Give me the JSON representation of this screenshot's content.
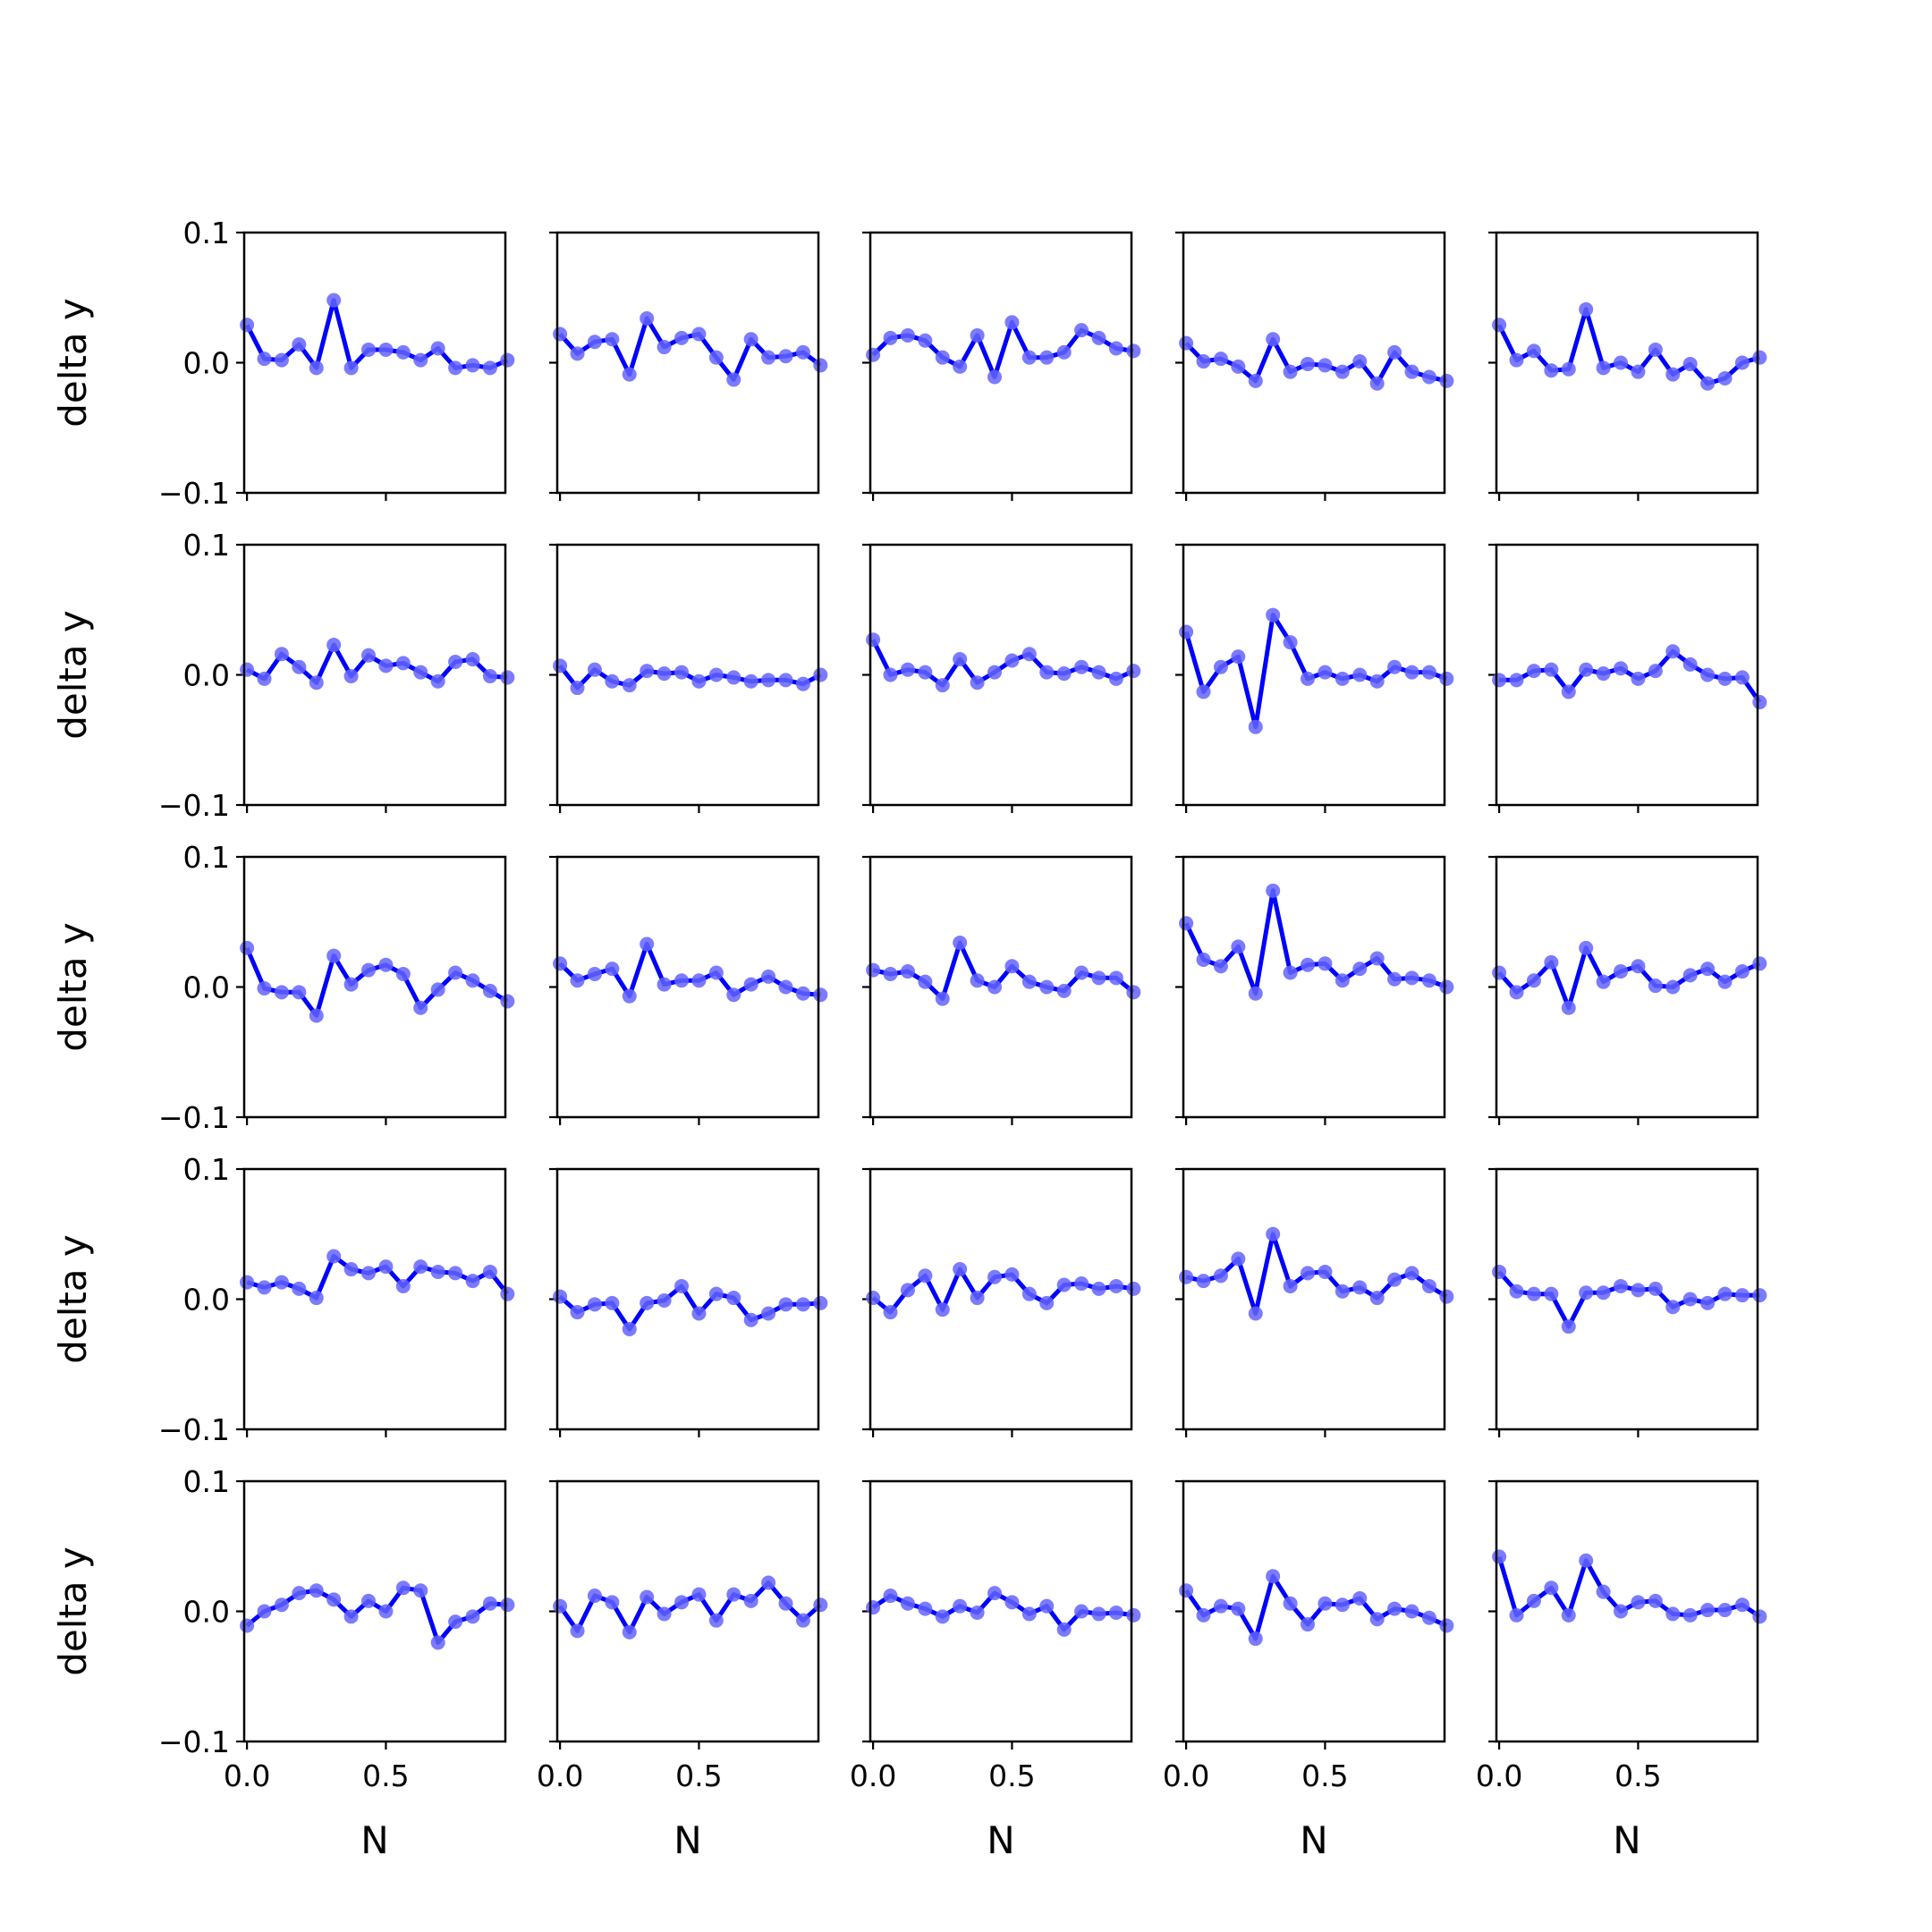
{
  "chart_data": {
    "type": "line",
    "layout": "5x5 grid of small multiples",
    "xlabel": "N",
    "ylabel": "delta y",
    "xlim": [
      -0.01,
      0.93
    ],
    "ylim": [
      -0.1,
      0.1
    ],
    "xticks": [
      0.0,
      0.5
    ],
    "xtick_labels": [
      "0.0",
      "0.5"
    ],
    "yticks": [
      0.1,
      0.0,
      -0.1
    ],
    "ytick_labels": [
      "0.1",
      "0.0",
      "−0.1"
    ],
    "x": [
      0.0,
      0.0625,
      0.125,
      0.1875,
      0.25,
      0.3125,
      0.375,
      0.4375,
      0.5,
      0.5625,
      0.625,
      0.6875,
      0.75,
      0.8125,
      0.875,
      0.9375
    ],
    "line_color": "#0000ff",
    "marker_color": "#6464ff",
    "grid": false,
    "panels": [
      {
        "values": [
          0.029,
          0.003,
          0.002,
          0.014,
          -0.004,
          0.048,
          -0.004,
          0.01,
          0.01,
          0.008,
          0.002,
          0.011,
          -0.004,
          -0.002,
          -0.004,
          0.002
        ]
      },
      {
        "values": [
          0.022,
          0.007,
          0.016,
          0.018,
          -0.009,
          0.034,
          0.012,
          0.019,
          0.022,
          0.004,
          -0.013,
          0.018,
          0.004,
          0.005,
          0.008,
          -0.002
        ]
      },
      {
        "values": [
          0.006,
          0.019,
          0.021,
          0.017,
          0.004,
          -0.003,
          0.021,
          -0.011,
          0.031,
          0.004,
          0.004,
          0.008,
          0.025,
          0.019,
          0.011,
          0.009
        ]
      },
      {
        "values": [
          0.015,
          0.001,
          0.003,
          -0.003,
          -0.014,
          0.018,
          -0.007,
          -0.001,
          -0.002,
          -0.007,
          0.001,
          -0.016,
          0.008,
          -0.007,
          -0.011,
          -0.014
        ]
      },
      {
        "values": [
          0.029,
          0.002,
          0.009,
          -0.006,
          -0.005,
          0.041,
          -0.004,
          0.0,
          -0.007,
          0.01,
          -0.009,
          -0.001,
          -0.016,
          -0.012,
          0.0,
          0.004
        ]
      },
      {
        "values": [
          0.004,
          -0.003,
          0.016,
          0.006,
          -0.006,
          0.023,
          -0.001,
          0.015,
          0.007,
          0.009,
          0.002,
          -0.005,
          0.01,
          0.012,
          -0.001,
          -0.002
        ]
      },
      {
        "values": [
          0.007,
          -0.01,
          0.004,
          -0.005,
          -0.008,
          0.003,
          0.001,
          0.002,
          -0.005,
          0.0,
          -0.002,
          -0.005,
          -0.004,
          -0.004,
          -0.007,
          0.0
        ]
      },
      {
        "values": [
          0.027,
          0.0,
          0.004,
          0.002,
          -0.008,
          0.012,
          -0.006,
          0.002,
          0.011,
          0.016,
          0.002,
          0.001,
          0.006,
          0.002,
          -0.003,
          0.003
        ]
      },
      {
        "values": [
          0.033,
          -0.013,
          0.006,
          0.014,
          -0.04,
          0.046,
          0.025,
          -0.003,
          0.002,
          -0.003,
          0.0,
          -0.005,
          0.006,
          0.002,
          0.002,
          -0.003
        ]
      },
      {
        "values": [
          -0.004,
          -0.004,
          0.003,
          0.004,
          -0.013,
          0.004,
          0.001,
          0.005,
          -0.003,
          0.003,
          0.018,
          0.008,
          0.0,
          -0.003,
          -0.002,
          -0.021
        ]
      },
      {
        "values": [
          0.03,
          -0.001,
          -0.004,
          -0.004,
          -0.022,
          0.024,
          0.002,
          0.013,
          0.017,
          0.01,
          -0.016,
          -0.002,
          0.011,
          0.005,
          -0.003,
          -0.011
        ]
      },
      {
        "values": [
          0.018,
          0.005,
          0.01,
          0.014,
          -0.007,
          0.033,
          0.002,
          0.005,
          0.005,
          0.011,
          -0.006,
          0.002,
          0.008,
          0.0,
          -0.005,
          -0.006
        ]
      },
      {
        "values": [
          0.013,
          0.01,
          0.012,
          0.004,
          -0.009,
          0.034,
          0.005,
          0.0,
          0.016,
          0.004,
          0.0,
          -0.003,
          0.011,
          0.007,
          0.007,
          -0.004
        ]
      },
      {
        "values": [
          0.049,
          0.021,
          0.016,
          0.031,
          -0.005,
          0.074,
          0.011,
          0.017,
          0.018,
          0.005,
          0.014,
          0.022,
          0.006,
          0.007,
          0.005,
          0.0
        ]
      },
      {
        "values": [
          0.011,
          -0.004,
          0.005,
          0.019,
          -0.016,
          0.03,
          0.004,
          0.012,
          0.016,
          0.001,
          0.0,
          0.009,
          0.014,
          0.004,
          0.012,
          0.018
        ]
      },
      {
        "values": [
          0.013,
          0.009,
          0.013,
          0.008,
          0.001,
          0.033,
          0.023,
          0.02,
          0.025,
          0.01,
          0.025,
          0.021,
          0.02,
          0.014,
          0.021,
          0.004
        ]
      },
      {
        "values": [
          0.002,
          -0.01,
          -0.004,
          -0.003,
          -0.023,
          -0.003,
          -0.001,
          0.01,
          -0.011,
          0.004,
          0.001,
          -0.016,
          -0.011,
          -0.004,
          -0.004,
          -0.003
        ]
      },
      {
        "values": [
          0.001,
          -0.01,
          0.007,
          0.018,
          -0.008,
          0.023,
          0.001,
          0.017,
          0.019,
          0.004,
          -0.003,
          0.011,
          0.012,
          0.008,
          0.01,
          0.008
        ]
      },
      {
        "values": [
          0.017,
          0.014,
          0.018,
          0.031,
          -0.011,
          0.05,
          0.01,
          0.02,
          0.021,
          0.006,
          0.009,
          0.001,
          0.015,
          0.02,
          0.01,
          0.002
        ]
      },
      {
        "values": [
          0.021,
          0.006,
          0.004,
          0.004,
          -0.021,
          0.005,
          0.005,
          0.01,
          0.007,
          0.008,
          -0.006,
          0.0,
          -0.003,
          0.004,
          0.003,
          0.003
        ]
      },
      {
        "values": [
          -0.011,
          0.0,
          0.005,
          0.014,
          0.016,
          0.009,
          -0.004,
          0.008,
          0.0,
          0.018,
          0.016,
          -0.024,
          -0.008,
          -0.004,
          0.006,
          0.005
        ]
      },
      {
        "values": [
          0.004,
          -0.015,
          0.012,
          0.007,
          -0.016,
          0.011,
          -0.002,
          0.007,
          0.013,
          -0.007,
          0.013,
          0.008,
          0.022,
          0.006,
          -0.007,
          0.005
        ]
      },
      {
        "values": [
          0.003,
          0.012,
          0.006,
          0.002,
          -0.004,
          0.004,
          -0.001,
          0.014,
          0.007,
          -0.002,
          0.004,
          -0.014,
          0.0,
          -0.002,
          -0.001,
          -0.003
        ]
      },
      {
        "values": [
          0.016,
          -0.003,
          0.004,
          0.002,
          -0.021,
          0.027,
          0.006,
          -0.01,
          0.006,
          0.005,
          0.01,
          -0.006,
          0.002,
          0.0,
          -0.005,
          -0.011
        ]
      },
      {
        "values": [
          0.042,
          -0.003,
          0.008,
          0.018,
          -0.003,
          0.039,
          0.015,
          0.0,
          0.007,
          0.008,
          -0.002,
          -0.003,
          0.001,
          0.001,
          0.005,
          -0.004
        ]
      }
    ]
  }
}
